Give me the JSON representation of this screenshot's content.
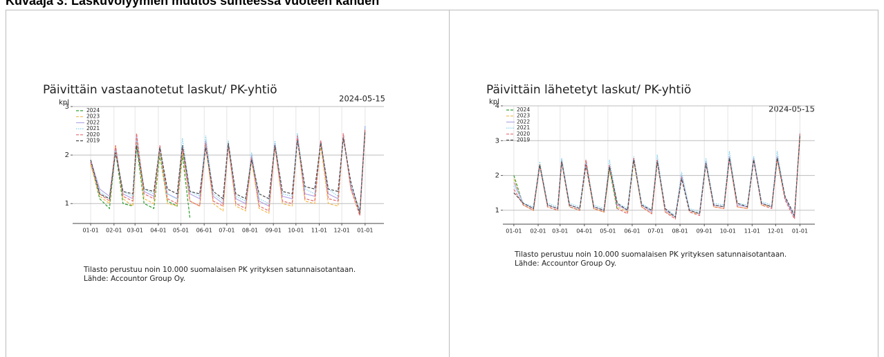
{
  "page": {
    "heading": "Kuvaaja 3: Laskuvolyymien muutos suhteessa vuoteen kahden"
  },
  "chart_data": [
    {
      "type": "line",
      "title": "Päivittäin vastaanotetut laskut/ PK-yhtiö",
      "date_label": "2024-05-15",
      "ylabel": "kpl",
      "notes": [
        "Tilasto perustuu noin 10.000 suomalaisen PK yrityksen satunnaisotantaan.",
        "Lähde: Accountor Group Oy."
      ],
      "x": [
        0,
        12,
        25,
        33,
        43,
        56,
        61,
        71,
        84,
        92,
        102,
        115,
        122,
        132,
        145,
        153,
        163,
        176,
        183,
        193,
        206,
        214,
        224,
        237,
        245,
        255,
        268,
        275,
        285,
        298,
        306,
        316,
        329,
        336,
        346,
        358,
        365
      ],
      "xlim": [
        -24,
        390
      ],
      "xticks": [
        {
          "value": 0,
          "label": "01-01"
        },
        {
          "value": 31,
          "label": "02-01"
        },
        {
          "value": 59,
          "label": "03-01"
        },
        {
          "value": 90,
          "label": "04-01"
        },
        {
          "value": 120,
          "label": "05-01"
        },
        {
          "value": 151,
          "label": "06-01"
        },
        {
          "value": 181,
          "label": "07-01"
        },
        {
          "value": 212,
          "label": "08-01"
        },
        {
          "value": 243,
          "label": "09-01"
        },
        {
          "value": 273,
          "label": "10-01"
        },
        {
          "value": 304,
          "label": "11-01"
        },
        {
          "value": 334,
          "label": "12-01"
        },
        {
          "value": 365,
          "label": "01-01"
        }
      ],
      "ylim": [
        0.59,
        3
      ],
      "yticks": [
        1,
        2,
        3
      ],
      "grid": true,
      "legend": "upper left",
      "series": [
        {
          "name": "2024",
          "color": "#2ca02c",
          "style": "dashed",
          "values": [
            1.85,
            1.1,
            0.9,
            2.1,
            1.0,
            0.95,
            2.2,
            1.0,
            0.9,
            2.0,
            1.05,
            0.95,
            2.0,
            0.7,
            null,
            null,
            null,
            null,
            null,
            null,
            null,
            null,
            null,
            null,
            null,
            null,
            null,
            null,
            null,
            null,
            null,
            null,
            null,
            null,
            null,
            null,
            null
          ]
        },
        {
          "name": "2023",
          "color": "#f5b94a",
          "style": "dashed",
          "values": [
            1.8,
            1.15,
            1.0,
            2.2,
            1.1,
            0.95,
            2.3,
            1.1,
            1.0,
            2.1,
            1.0,
            0.95,
            2.1,
            1.05,
            0.95,
            2.2,
            1.0,
            0.85,
            2.2,
            0.95,
            0.85,
            1.9,
            0.9,
            0.8,
            2.2,
            1.0,
            0.95,
            2.35,
            1.05,
            1.0,
            2.2,
            1.0,
            0.95,
            2.4,
            1.3,
            0.8,
            2.5
          ]
        },
        {
          "name": "2022",
          "color": "#b4a7e6",
          "style": "solid",
          "values": [
            1.9,
            1.3,
            1.15,
            2.15,
            1.2,
            1.1,
            2.4,
            1.25,
            1.15,
            2.15,
            1.2,
            1.1,
            2.2,
            1.2,
            1.1,
            2.3,
            1.15,
            1.0,
            2.25,
            1.1,
            1.0,
            2.0,
            1.05,
            0.95,
            2.25,
            1.15,
            1.1,
            2.4,
            1.2,
            1.15,
            2.3,
            1.2,
            1.1,
            2.4,
            1.35,
            0.85,
            2.6
          ]
        },
        {
          "name": "2021",
          "color": "#7fcfee",
          "style": "dotted",
          "values": [
            1.9,
            1.25,
            1.1,
            2.1,
            1.25,
            1.15,
            2.35,
            1.3,
            1.2,
            2.2,
            1.2,
            1.1,
            2.35,
            1.25,
            1.15,
            2.4,
            1.2,
            1.05,
            2.3,
            1.15,
            1.05,
            2.05,
            1.1,
            1.0,
            2.3,
            1.2,
            1.15,
            2.45,
            1.3,
            1.2,
            2.3,
            1.3,
            1.15,
            2.4,
            1.4,
            0.85,
            2.6
          ]
        },
        {
          "name": "2020",
          "color": "#e5686c",
          "style": "dashed",
          "values": [
            1.85,
            1.2,
            1.05,
            2.2,
            1.15,
            1.05,
            2.45,
            1.2,
            1.1,
            2.2,
            1.1,
            1.0,
            2.15,
            1.05,
            0.95,
            2.25,
            1.05,
            0.95,
            2.2,
            1.0,
            0.9,
            1.95,
            0.95,
            0.85,
            2.2,
            1.05,
            1.0,
            2.4,
            1.1,
            1.05,
            2.3,
            1.1,
            1.05,
            2.45,
            1.3,
            0.75,
            2.55
          ]
        },
        {
          "name": "2019",
          "color": "#4a4a4a",
          "style": "dashed",
          "values": [
            1.9,
            1.2,
            1.1,
            2.05,
            1.25,
            1.2,
            2.2,
            1.3,
            1.25,
            2.15,
            1.3,
            1.2,
            2.2,
            1.25,
            1.2,
            2.15,
            1.25,
            1.1,
            2.25,
            1.2,
            1.1,
            1.9,
            1.2,
            1.1,
            2.2,
            1.25,
            1.2,
            2.3,
            1.35,
            1.3,
            2.25,
            1.3,
            1.25,
            2.35,
            1.45,
            0.8,
            2.5
          ]
        }
      ]
    },
    {
      "type": "line",
      "title": "Päivittäin lähetetyt laskut/ PK-yhtiö",
      "date_label": "2024-05-15",
      "ylabel": "kpl",
      "notes": [
        "Tilasto perustuu noin 10.000 suomalaisen PK yrityksen satunnaisotantaan.",
        "Lähde: Accountor Group Oy."
      ],
      "x": [
        0,
        12,
        25,
        33,
        43,
        56,
        61,
        71,
        84,
        92,
        102,
        115,
        122,
        132,
        145,
        153,
        163,
        176,
        183,
        193,
        206,
        214,
        224,
        237,
        245,
        255,
        268,
        275,
        285,
        298,
        306,
        316,
        329,
        336,
        346,
        358,
        365
      ],
      "xlim": [
        -14,
        384
      ],
      "xticks": [
        {
          "value": 0,
          "label": "01-01"
        },
        {
          "value": 31,
          "label": "02-01"
        },
        {
          "value": 59,
          "label": "03-01"
        },
        {
          "value": 90,
          "label": "04-01"
        },
        {
          "value": 120,
          "label": "05-01"
        },
        {
          "value": 151,
          "label": "06-01"
        },
        {
          "value": 181,
          "label": "07-01"
        },
        {
          "value": 212,
          "label": "08-01"
        },
        {
          "value": 243,
          "label": "09-01"
        },
        {
          "value": 273,
          "label": "10-01"
        },
        {
          "value": 304,
          "label": "11-01"
        },
        {
          "value": 334,
          "label": "12-01"
        },
        {
          "value": 365,
          "label": "01-01"
        }
      ],
      "ylim": [
        0.6,
        4
      ],
      "yticks": [
        1,
        2,
        3,
        4
      ],
      "grid": true,
      "legend": "upper left",
      "series": [
        {
          "name": "2024",
          "color": "#2ca02c",
          "style": "dashed",
          "values": [
            2.0,
            1.15,
            1.0,
            2.3,
            1.1,
            1.0,
            2.45,
            1.1,
            1.0,
            2.4,
            1.05,
            0.95,
            2.2,
            1.0,
            null,
            null,
            null,
            null,
            null,
            null,
            null,
            null,
            null,
            null,
            null,
            null,
            null,
            null,
            null,
            null,
            null,
            null,
            null,
            null,
            null,
            null,
            null
          ]
        },
        {
          "name": "2023",
          "color": "#f5b94a",
          "style": "dashed",
          "values": [
            1.9,
            1.15,
            1.0,
            2.35,
            1.1,
            1.0,
            2.4,
            1.1,
            1.0,
            2.3,
            1.05,
            0.95,
            2.2,
            1.1,
            0.95,
            2.4,
            1.1,
            0.9,
            2.4,
            0.95,
            0.8,
            1.95,
            0.95,
            0.9,
            2.35,
            1.1,
            1.05,
            2.5,
            1.1,
            1.05,
            2.5,
            1.15,
            1.1,
            2.45,
            1.3,
            0.8,
            3.1
          ]
        },
        {
          "name": "2022",
          "color": "#b4a7e6",
          "style": "solid",
          "values": [
            1.8,
            1.2,
            1.05,
            2.3,
            1.15,
            1.05,
            2.45,
            1.15,
            1.05,
            2.35,
            1.1,
            1.0,
            2.3,
            1.15,
            1.0,
            2.5,
            1.15,
            0.95,
            2.45,
            1.0,
            0.8,
            2.0,
            1.0,
            0.9,
            2.4,
            1.15,
            1.1,
            2.55,
            1.15,
            1.1,
            2.5,
            1.2,
            1.1,
            2.55,
            1.35,
            0.8,
            3.2
          ]
        },
        {
          "name": "2021",
          "color": "#7fcfee",
          "style": "dotted",
          "values": [
            1.7,
            1.2,
            1.1,
            2.4,
            1.2,
            1.1,
            2.5,
            1.2,
            1.1,
            2.45,
            1.15,
            1.05,
            2.45,
            1.2,
            1.05,
            2.55,
            1.2,
            1.0,
            2.6,
            1.05,
            0.85,
            2.1,
            1.05,
            0.95,
            2.5,
            1.2,
            1.15,
            2.7,
            1.2,
            1.15,
            2.55,
            1.25,
            1.15,
            2.7,
            1.4,
            0.85,
            3.25
          ]
        },
        {
          "name": "2020",
          "color": "#e5686c",
          "style": "dashed",
          "values": [
            1.6,
            1.15,
            1.0,
            2.3,
            1.1,
            1.0,
            2.4,
            1.1,
            1.0,
            2.45,
            1.05,
            0.95,
            2.3,
            1.05,
            0.9,
            2.5,
            1.1,
            0.9,
            2.45,
            0.95,
            0.75,
            1.95,
            0.95,
            0.85,
            2.35,
            1.1,
            1.05,
            2.5,
            1.1,
            1.05,
            2.45,
            1.15,
            1.05,
            2.5,
            1.3,
            0.75,
            3.2
          ]
        },
        {
          "name": "2019",
          "color": "#4a4a4a",
          "style": "dashed",
          "values": [
            1.5,
            1.2,
            1.05,
            2.3,
            1.15,
            1.05,
            2.4,
            1.15,
            1.05,
            2.3,
            1.1,
            1.0,
            2.25,
            1.2,
            1.0,
            2.45,
            1.15,
            1.0,
            2.4,
            1.05,
            0.8,
            1.9,
            1.0,
            0.9,
            2.35,
            1.15,
            1.1,
            2.5,
            1.2,
            1.1,
            2.45,
            1.2,
            1.1,
            2.5,
            1.4,
            0.85,
            3.15
          ]
        }
      ]
    }
  ]
}
